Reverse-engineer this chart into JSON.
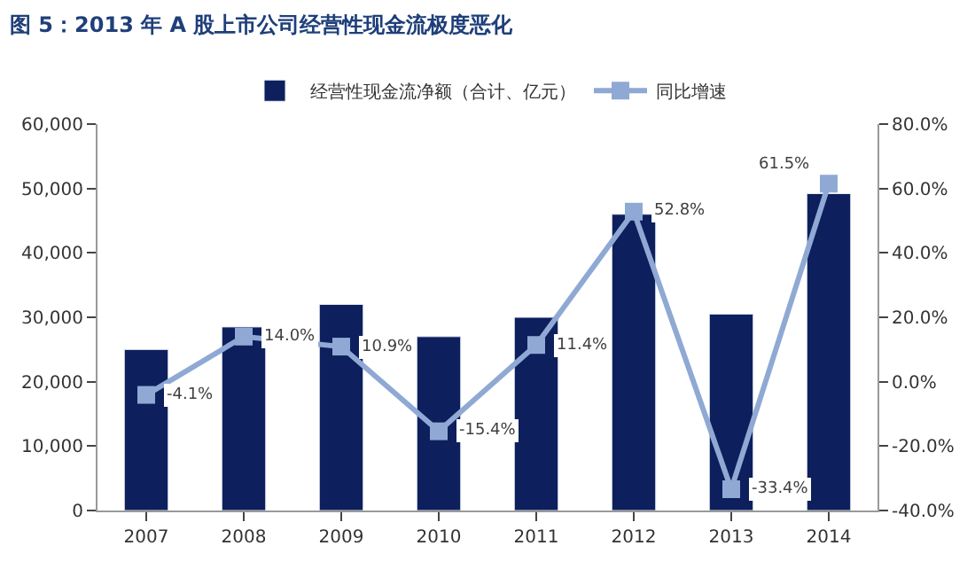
{
  "chart_data": {
    "type": "bar",
    "title": "图 5：2013 年 A 股上市公司经营性现金流极度恶化",
    "categories": [
      "2007",
      "2008",
      "2009",
      "2010",
      "2011",
      "2012",
      "2013",
      "2014"
    ],
    "series": [
      {
        "name": "经营性现金流净额（合计、亿元）",
        "color": "#0d1f5c",
        "values": [
          25000,
          28500,
          32000,
          27000,
          30000,
          46000,
          30500,
          49200
        ]
      },
      {
        "name": "同比增速",
        "type": "line",
        "axis": "y2",
        "color": "#8fa9d4",
        "marker": "square",
        "values": [
          -4.1,
          14.0,
          10.9,
          -15.4,
          11.4,
          52.8,
          -33.4,
          61.5
        ],
        "value_labels": [
          "-4.1%",
          "14.0%",
          "10.9%",
          "-15.4%",
          "11.4%",
          "52.8%",
          "-33.4%",
          "61.5%"
        ]
      }
    ],
    "ylim": [
      0,
      60000
    ],
    "yticks": [
      {
        "value": 0,
        "label": "0"
      },
      {
        "value": 10000,
        "label": "10,000"
      },
      {
        "value": 20000,
        "label": "20,000"
      },
      {
        "value": 30000,
        "label": "30,000"
      },
      {
        "value": 40000,
        "label": "40,000"
      },
      {
        "value": 50000,
        "label": "50,000"
      },
      {
        "value": 60000,
        "label": "60,000"
      }
    ],
    "y2lim": [
      -40,
      80
    ],
    "y2ticks": [
      {
        "value": -40,
        "label": "-40.0%"
      },
      {
        "value": -20,
        "label": "-20.0%"
      },
      {
        "value": 0,
        "label": "0.0%"
      },
      {
        "value": 20,
        "label": "20.0%"
      },
      {
        "value": 40,
        "label": "40.0%"
      },
      {
        "value": 60,
        "label": "60.0%"
      },
      {
        "value": 80,
        "label": "80.0%"
      }
    ],
    "legend": "top"
  }
}
